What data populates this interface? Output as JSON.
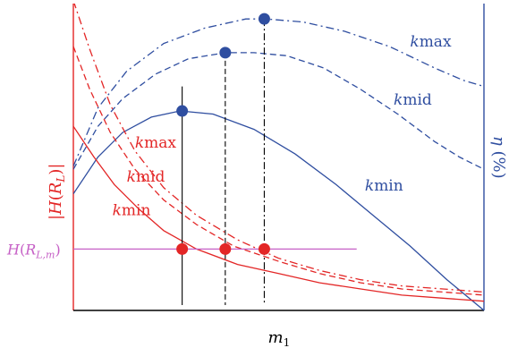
{
  "chart_data": {
    "type": "line",
    "xlabel": "m_1",
    "ylabel_left": "|H(R_L)|",
    "ylabel_right": "η (%)",
    "hline_label": "H(R_{L,m})",
    "colors": {
      "red": "#e32626",
      "blue": "#2f4ea0",
      "magenta": "#c660c6",
      "black": "#000000"
    },
    "x_domain": [
      0,
      1
    ],
    "y_left_domain": [
      0,
      1
    ],
    "y_right_domain": [
      0,
      1
    ],
    "efficiency_series": [
      {
        "name": "kmin",
        "style": "solid",
        "x": [
          0,
          0.06,
          0.12,
          0.19,
          0.26,
          0.34,
          0.44,
          0.54,
          0.64,
          0.73,
          0.82,
          0.91,
          1.0
        ],
        "y": [
          0.38,
          0.5,
          0.58,
          0.63,
          0.65,
          0.64,
          0.59,
          0.51,
          0.41,
          0.31,
          0.21,
          0.1,
          0.0
        ]
      },
      {
        "name": "kmid",
        "style": "dashed",
        "x": [
          0,
          0.06,
          0.12,
          0.2,
          0.28,
          0.37,
          0.44,
          0.52,
          0.61,
          0.7,
          0.79,
          0.88,
          0.94,
          1.0
        ],
        "y": [
          0.46,
          0.6,
          0.69,
          0.77,
          0.82,
          0.84,
          0.84,
          0.83,
          0.79,
          0.72,
          0.64,
          0.55,
          0.5,
          0.46
        ]
      },
      {
        "name": "kmax",
        "style": "dashdot",
        "x": [
          0,
          0.06,
          0.13,
          0.22,
          0.32,
          0.42,
          0.47,
          0.56,
          0.66,
          0.77,
          0.88,
          0.95,
          1.0
        ],
        "y": [
          0.47,
          0.66,
          0.78,
          0.87,
          0.92,
          0.95,
          0.95,
          0.94,
          0.91,
          0.86,
          0.79,
          0.75,
          0.73
        ]
      }
    ],
    "impedance_series": [
      {
        "name": "kmin",
        "style": "solid",
        "x": [
          0,
          0.05,
          0.1,
          0.16,
          0.22,
          0.3,
          0.4,
          0.5,
          0.6,
          0.7,
          0.8,
          0.9,
          1.0
        ],
        "y": [
          0.6,
          0.5,
          0.41,
          0.33,
          0.26,
          0.2,
          0.15,
          0.12,
          0.09,
          0.07,
          0.05,
          0.04,
          0.03
        ]
      },
      {
        "name": "kmid",
        "style": "dashed",
        "x": [
          0,
          0.04,
          0.09,
          0.15,
          0.22,
          0.3,
          0.39,
          0.5,
          0.6,
          0.7,
          0.8,
          0.9,
          1.0
        ],
        "y": [
          0.86,
          0.72,
          0.58,
          0.46,
          0.36,
          0.28,
          0.21,
          0.16,
          0.12,
          0.09,
          0.07,
          0.06,
          0.05
        ]
      },
      {
        "name": "kmax",
        "style": "dashdot",
        "x": [
          0,
          0.04,
          0.09,
          0.15,
          0.22,
          0.3,
          0.4,
          0.5,
          0.6,
          0.7,
          0.8,
          0.9,
          1.0
        ],
        "y": [
          1.01,
          0.85,
          0.67,
          0.52,
          0.4,
          0.31,
          0.23,
          0.17,
          0.13,
          0.1,
          0.08,
          0.07,
          0.06
        ]
      }
    ],
    "hline": {
      "y": 0.2,
      "x_end": 0.69
    },
    "markers": [
      {
        "series": "kmin",
        "style": "solid",
        "x": 0.265,
        "eff_y": 0.65,
        "imp_y": 0.2,
        "line_top": 0.73
      },
      {
        "series": "kmid",
        "style": "dashed",
        "x": 0.37,
        "eff_y": 0.84,
        "imp_y": 0.2,
        "line_top": 0.84
      },
      {
        "series": "kmax",
        "style": "dashdot",
        "x": 0.465,
        "eff_y": 0.95,
        "imp_y": 0.2,
        "line_top": 0.95
      }
    ],
    "series_labels": [
      {
        "text": "kmax",
        "color": "red",
        "x": 0.15,
        "y": 0.53
      },
      {
        "text": "kmid",
        "color": "red",
        "x": 0.13,
        "y": 0.42
      },
      {
        "text": "kmin",
        "color": "red",
        "x": 0.095,
        "y": 0.31
      },
      {
        "text": "kmax",
        "color": "blue",
        "x": 0.82,
        "y": 0.86
      },
      {
        "text": "kmid",
        "color": "blue",
        "x": 0.78,
        "y": 0.67
      },
      {
        "text": "kmin",
        "color": "blue",
        "x": 0.71,
        "y": 0.39
      }
    ]
  }
}
